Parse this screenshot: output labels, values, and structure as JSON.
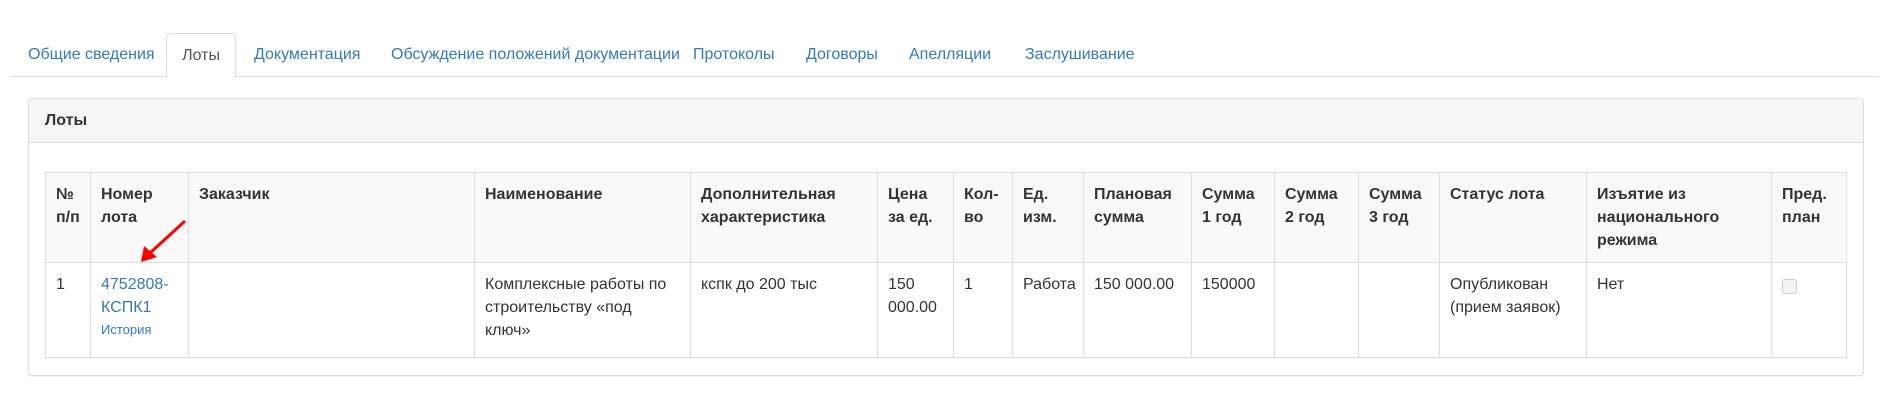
{
  "tabs": [
    {
      "label": "Общие сведения",
      "active": false
    },
    {
      "label": "Лоты",
      "active": true
    },
    {
      "label": "Документация",
      "active": false
    },
    {
      "label": "Обсуждение положений документации",
      "active": false
    },
    {
      "label": "Протоколы",
      "active": false
    },
    {
      "label": "Договоры",
      "active": false
    },
    {
      "label": "Апелляции",
      "active": false
    },
    {
      "label": "Заслушивание",
      "active": false
    }
  ],
  "panel": {
    "title": "Лоты"
  },
  "table": {
    "headers": [
      "№ п/п",
      "Номер лота",
      "Заказчик",
      "Наименование",
      "Дополнительная характеристика",
      "Цена за ед.",
      "Кол-во",
      "Ед. изм.",
      "Плановая сумма",
      "Сумма 1 год",
      "Сумма 2 год",
      "Сумма 3 год",
      "Статус лота",
      "Изъятие из национального режима",
      "Пред. план"
    ],
    "rows": [
      {
        "num": "1",
        "lot_number": "4752808-КСПК1",
        "history_link": "История",
        "customer": "",
        "name": "Комплексные работы по строительству «под ключ»",
        "extra": "кспк до 200 тыс",
        "unit_price": "150 000.00",
        "qty": "1",
        "unit": "Работа",
        "planned_sum": "150 000.00",
        "sum1": "150000",
        "sum2": "",
        "sum3": "",
        "status": "Опубликован (прием заявок)",
        "exemption": "Нет",
        "pre_plan_checked": false
      }
    ]
  },
  "annotation": {
    "arrow_color": "#ff0000"
  }
}
